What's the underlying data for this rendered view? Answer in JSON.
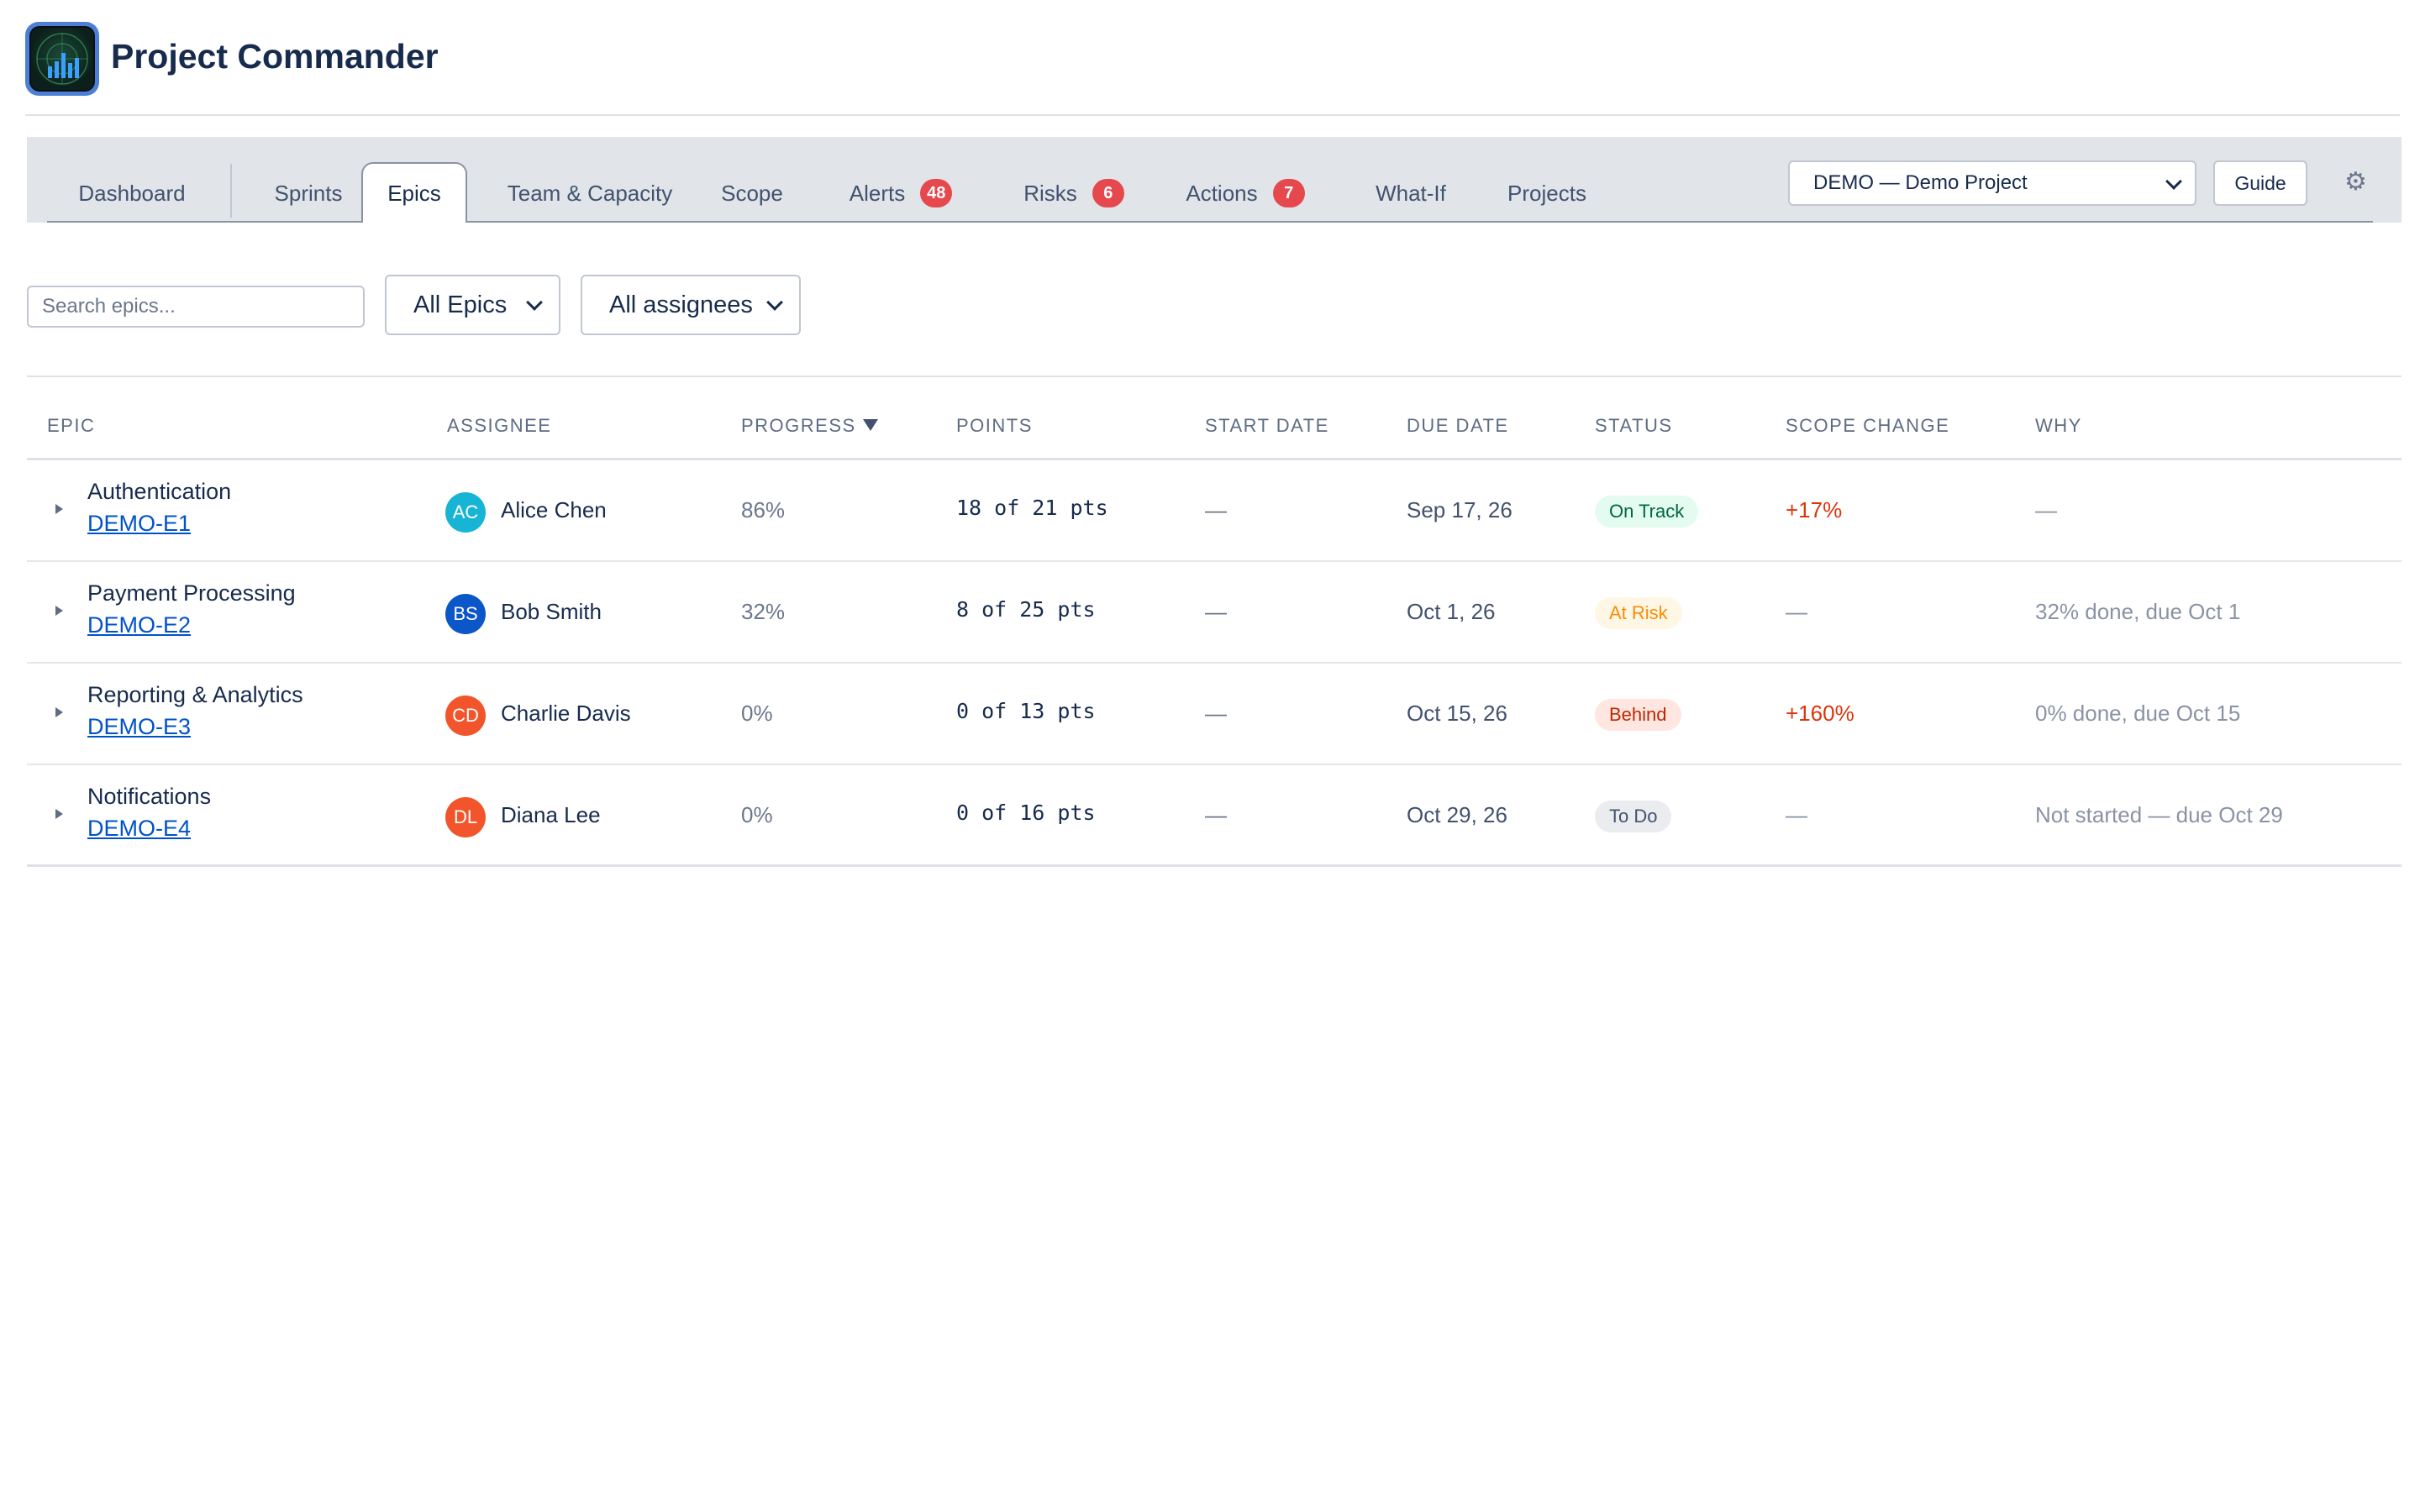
{
  "app": {
    "title": "Project Commander",
    "logo_icon": "radar-chart-icon"
  },
  "tabs": [
    {
      "label": "Dashboard",
      "badge": null
    },
    {
      "label": "Sprints",
      "badge": null
    },
    {
      "label": "Epics",
      "badge": null,
      "active": true
    },
    {
      "label": "Team & Capacity",
      "badge": null
    },
    {
      "label": "Scope",
      "badge": null
    },
    {
      "label": "Alerts",
      "badge": "48"
    },
    {
      "label": "Risks",
      "badge": "6"
    },
    {
      "label": "Actions",
      "badge": "7"
    },
    {
      "label": "What-If",
      "badge": null
    },
    {
      "label": "Projects",
      "badge": null
    }
  ],
  "toolbar": {
    "project_selected": "DEMO — Demo Project",
    "guide_label": "Guide",
    "settings_icon": "gear-icon"
  },
  "filters": {
    "search_placeholder": "Search epics...",
    "epic_filter": "All Epics",
    "assignee_filter": "All assignees"
  },
  "table": {
    "headers": [
      "EPIC",
      "ASSIGNEE",
      "PROGRESS",
      "POINTS",
      "START DATE",
      "DUE DATE",
      "STATUS",
      "SCOPE CHANGE",
      "WHY"
    ],
    "sorted_column": "PROGRESS",
    "rows": [
      {
        "name": "Authentication",
        "key": "DEMO-E1",
        "initials": "AC",
        "assignee": "Alice Chen",
        "progress": "86%",
        "points": "18 of 21 pts",
        "start": "—",
        "due": "Sep 17, 26",
        "status": "On Track",
        "scope_change": "+17%",
        "why": "—"
      },
      {
        "name": "Payment Processing",
        "key": "DEMO-E2",
        "initials": "BS",
        "assignee": "Bob Smith",
        "progress": "32%",
        "points": "8 of 25 pts",
        "start": "—",
        "due": "Oct 1, 26",
        "status": "At Risk",
        "scope_change": "—",
        "why": "32% done, due Oct 1"
      },
      {
        "name": "Reporting & Analytics",
        "key": "DEMO-E3",
        "initials": "CD",
        "assignee": "Charlie Davis",
        "progress": "0%",
        "points": "0 of 13 pts",
        "start": "—",
        "due": "Oct 15, 26",
        "status": "Behind",
        "scope_change": "+160%",
        "why": "0% done, due Oct 15"
      },
      {
        "name": "Notifications",
        "key": "DEMO-E4",
        "initials": "DL",
        "assignee": "Diana Lee",
        "progress": "0%",
        "points": "0 of 16 pts",
        "start": "—",
        "due": "Oct 29, 26",
        "status": "To Do",
        "scope_change": "—",
        "why": "Not started — due Oct 29"
      }
    ]
  },
  "colors": {
    "brand": "#172b4d",
    "link": "#0052cc",
    "badge": "#e5484d",
    "avatars": [
      "#18b4d6",
      "#0b57c9",
      "#f2552c",
      "#f2552c"
    ],
    "status": {
      "On Track": {
        "bg": "#e3fcef",
        "fg": "#006644"
      },
      "At Risk": {
        "bg": "#fff7e6",
        "fg": "#ff8b00"
      },
      "Behind": {
        "bg": "#ffe6e0",
        "fg": "#bf2600"
      },
      "To Do": {
        "bg": "#ebecf0",
        "fg": "#42526e"
      }
    },
    "scope_positive": "#de350b",
    "scope_neutral": "#8993a4"
  }
}
